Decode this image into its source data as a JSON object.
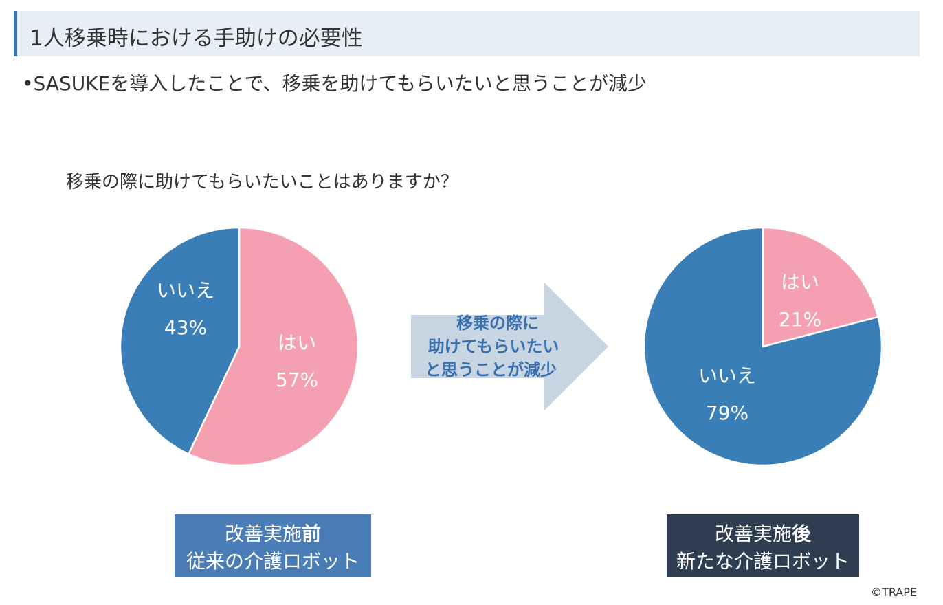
{
  "header": {
    "title": "1人移乗時における手助けの必要性"
  },
  "bullet_text": "•SASUKEを導入したことで、移乗を助けてもらいたいと思うことが減少",
  "question": "移乗の際に助けてもらいたいことはありますか？",
  "colors": {
    "yes": "#f5a0b0",
    "no": "#3a7eb8",
    "arrow": "#c8d5e3",
    "arrow_text": "#3a70ad",
    "caption_before": "#4a7cb5",
    "caption_after": "#2e3d50",
    "title_accent": "#3a70ad"
  },
  "arrow": {
    "lines": [
      "移乗の際に",
      "助けてもらいたい",
      "と思うことが減少"
    ]
  },
  "captions": {
    "before": {
      "line1_main": "改善実施",
      "line1_emph": "前",
      "line2": "従来の介護ロボット"
    },
    "after": {
      "line1_main": "改善実施",
      "line1_emph": "後",
      "line2": "新たな介護ロボット"
    }
  },
  "copyright": "©TRAPE",
  "chart_data": [
    {
      "type": "pie",
      "slices": [
        {
          "label": "はい",
          "value": 57,
          "display": "57%",
          "color": "#f5a0b0"
        },
        {
          "label": "いいえ",
          "value": 43,
          "display": "43%",
          "color": "#3a7eb8"
        }
      ]
    },
    {
      "type": "pie",
      "slices": [
        {
          "label": "はい",
          "value": 21,
          "display": "21%",
          "color": "#f5a0b0"
        },
        {
          "label": "いいえ",
          "value": 79,
          "display": "79%",
          "color": "#3a7eb8"
        }
      ]
    }
  ]
}
